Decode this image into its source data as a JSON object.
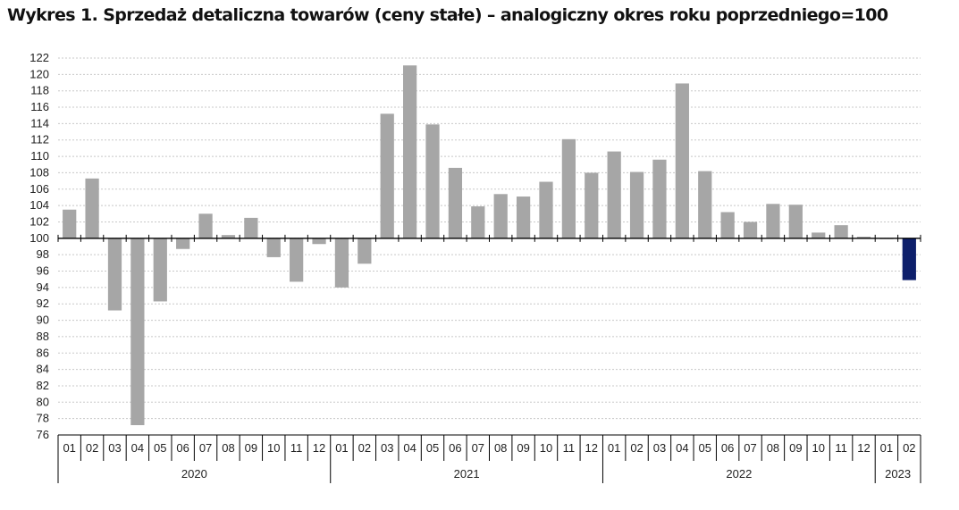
{
  "chart_data": {
    "type": "bar",
    "title": "Wykres 1. Sprzedaż detaliczna towarów (ceny stałe) – analogiczny okres roku poprzedniego=100",
    "xlabel": "",
    "ylabel": "",
    "baseline": 100,
    "ylim": [
      76,
      122
    ],
    "y_ticks": [
      76,
      78,
      80,
      82,
      84,
      86,
      88,
      90,
      92,
      94,
      96,
      98,
      100,
      102,
      104,
      106,
      108,
      110,
      112,
      114,
      116,
      118,
      120,
      122
    ],
    "grid": true,
    "legend": "none",
    "categories": [
      "01",
      "02",
      "03",
      "04",
      "05",
      "06",
      "07",
      "08",
      "09",
      "10",
      "11",
      "12",
      "01",
      "02",
      "03",
      "04",
      "05",
      "06",
      "07",
      "08",
      "09",
      "10",
      "11",
      "12",
      "01",
      "02",
      "03",
      "04",
      "05",
      "06",
      "07",
      "08",
      "09",
      "10",
      "11",
      "12",
      "01",
      "02"
    ],
    "years": [
      {
        "label": "2020",
        "count": 12
      },
      {
        "label": "2021",
        "count": 12
      },
      {
        "label": "2022",
        "count": 12
      },
      {
        "label": "2023",
        "count": 2
      }
    ],
    "values": [
      103.5,
      107.3,
      91.2,
      77.2,
      92.3,
      98.7,
      103.0,
      100.4,
      102.5,
      97.7,
      94.7,
      99.3,
      94.0,
      96.9,
      115.2,
      121.1,
      113.9,
      108.6,
      103.9,
      105.4,
      105.1,
      106.9,
      112.1,
      108.0,
      110.6,
      108.1,
      109.6,
      118.9,
      108.2,
      103.2,
      102.0,
      104.2,
      104.1,
      100.7,
      101.6,
      100.2,
      99.9,
      94.9
    ],
    "colors": {
      "default": "#a6a6a6",
      "highlight": "#0d1f6b",
      "highlight_index": 37
    }
  }
}
